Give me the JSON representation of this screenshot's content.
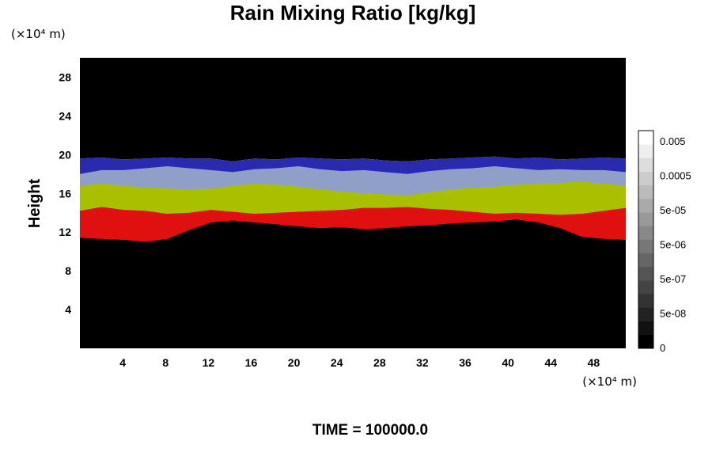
{
  "chart_data": {
    "type": "heatmap",
    "title": "Rain Mixing Ratio [kg/kg]",
    "ylabel": "Height",
    "x_unit": "(×10⁴ m)",
    "y_unit": "(×10⁴ m)",
    "footer": "TIME = 100000.0",
    "x_ticks": [
      "4",
      "8",
      "12",
      "16",
      "20",
      "24",
      "28",
      "32",
      "36",
      "40",
      "44",
      "48"
    ],
    "y_ticks": [
      "4",
      "8",
      "12",
      "16",
      "20",
      "24",
      "28"
    ],
    "xlim": [
      0,
      51
    ],
    "ylim": [
      0,
      30
    ],
    "background_color": "#000000",
    "colorbar": {
      "labels": [
        "0.005",
        "0.0005",
        "5e-05",
        "5e-06",
        "5e-07",
        "5e-08",
        "0"
      ],
      "levels": 16,
      "colors": [
        "#000000",
        "#ffffff"
      ]
    },
    "layers": [
      {
        "color": "#e01010",
        "bottom": [
          11.4,
          11.3,
          11.2,
          11.0,
          11.3,
          12.2,
          13.0,
          13.2,
          13.0,
          12.8,
          12.6,
          12.4,
          12.5,
          12.3,
          12.4,
          12.6,
          12.7,
          12.9,
          13.0,
          13.1,
          13.3,
          13.0,
          12.4,
          11.5,
          11.3,
          11.2
        ]
      },
      {
        "color": "#a8c000",
        "bottom": [
          14.2,
          14.6,
          14.3,
          14.2,
          13.9,
          14.0,
          14.3,
          14.1,
          13.9,
          14.0,
          14.1,
          14.2,
          14.3,
          14.5,
          14.5,
          14.6,
          14.4,
          14.3,
          14.1,
          13.9,
          14.0,
          13.9,
          13.8,
          13.9,
          14.2,
          14.5
        ]
      },
      {
        "color": "#8f9fc8",
        "bottom": [
          16.8,
          17.0,
          16.8,
          16.6,
          16.5,
          16.4,
          16.5,
          16.8,
          17.0,
          16.9,
          16.7,
          16.4,
          16.2,
          16.0,
          15.9,
          15.8,
          16.1,
          16.4,
          16.6,
          16.7,
          16.9,
          17.0,
          17.1,
          17.2,
          17.0,
          16.8
        ]
      },
      {
        "color": "#2a2ab0",
        "bottom": [
          18.0,
          18.4,
          18.4,
          18.6,
          18.8,
          18.6,
          18.4,
          18.2,
          18.5,
          18.6,
          18.8,
          18.5,
          18.3,
          18.4,
          18.2,
          18.0,
          18.3,
          18.5,
          18.6,
          18.8,
          18.6,
          18.4,
          18.5,
          18.4,
          18.4,
          18.2
        ]
      }
    ],
    "top": [
      19.6,
      19.7,
      19.5,
      19.6,
      19.7,
      19.6,
      19.6,
      19.3,
      19.6,
      19.5,
      19.7,
      19.6,
      19.5,
      19.6,
      19.4,
      19.3,
      19.5,
      19.6,
      19.7,
      19.8,
      19.6,
      19.7,
      19.5,
      19.6,
      19.7,
      19.6
    ]
  }
}
